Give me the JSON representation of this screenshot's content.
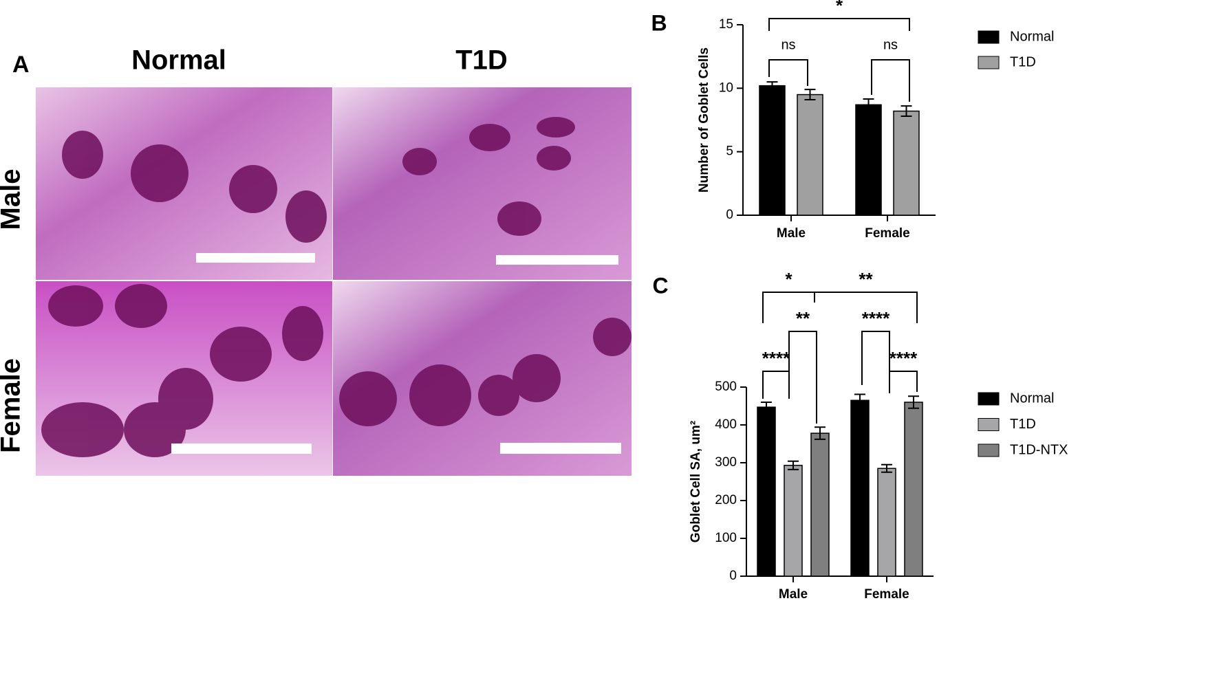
{
  "panel_a": {
    "label": "A",
    "columns": [
      "Normal",
      "T1D"
    ],
    "rows": [
      "Male",
      "Female"
    ]
  },
  "chart_data": [
    {
      "type": "bar",
      "panel_label": "B",
      "ylabel": "Number of Goblet Cells",
      "categories": [
        "Male",
        "Female"
      ],
      "series": [
        {
          "name": "Normal",
          "color": "#000000",
          "values": [
            10.2,
            8.7
          ],
          "errors": [
            0.3,
            0.45
          ]
        },
        {
          "name": "T1D",
          "color": "#a0a0a0",
          "values": [
            9.5,
            8.2
          ],
          "errors": [
            0.4,
            0.4
          ]
        }
      ],
      "ylim": [
        0,
        15
      ],
      "yticks": [
        0,
        5,
        10,
        15
      ],
      "annotations": [
        "*",
        "ns",
        "ns"
      ]
    },
    {
      "type": "bar",
      "panel_label": "C",
      "ylabel": "Goblet Cell SA, um²",
      "categories": [
        "Male",
        "Female"
      ],
      "series": [
        {
          "name": "Normal",
          "color": "#000000",
          "values": [
            447,
            465
          ],
          "errors": [
            13,
            16
          ]
        },
        {
          "name": "T1D",
          "color": "#a6a6a9",
          "values": [
            293,
            285
          ],
          "errors": [
            11,
            10
          ]
        },
        {
          "name": "T1D-NTX",
          "color": "#7f7f7f",
          "values": [
            378,
            460
          ],
          "errors": [
            16,
            16
          ]
        }
      ],
      "ylim": [
        0,
        500
      ],
      "yticks": [
        0,
        100,
        200,
        300,
        400,
        500
      ],
      "annotations": [
        "*",
        "**",
        "**",
        "****",
        "****",
        "****"
      ]
    }
  ]
}
